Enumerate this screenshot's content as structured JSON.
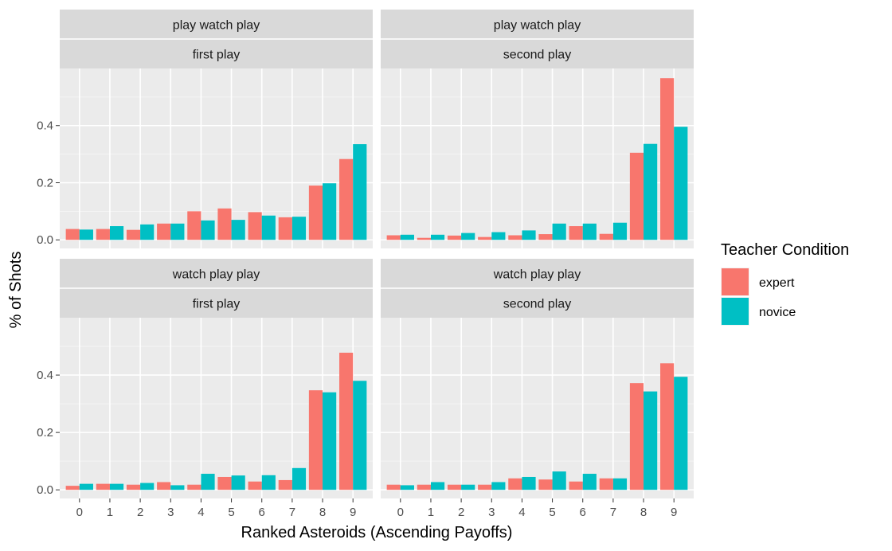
{
  "chart_data": {
    "type": "bar",
    "xlabel": "Ranked Asteroids (Ascending Payoffs)",
    "ylabel": "% of Shots",
    "categories": [
      "0",
      "1",
      "2",
      "3",
      "4",
      "5",
      "6",
      "7",
      "8",
      "9"
    ],
    "y_ticks": [
      "0.0",
      "0.2",
      "0.4"
    ],
    "ylim": [
      -0.03,
      0.6
    ],
    "grid": true,
    "legend": {
      "title": "Teacher Condition",
      "position": "right",
      "entries": [
        {
          "label": "expert",
          "color": "#F8766D"
        },
        {
          "label": "novice",
          "color": "#00BFC4"
        }
      ]
    },
    "panels": [
      {
        "strip_top": "play watch play",
        "strip_bottom": "first play",
        "series": [
          {
            "name": "expert",
            "color": "#F8766D",
            "values": [
              0.038,
              0.038,
              0.035,
              0.057,
              0.1,
              0.11,
              0.097,
              0.079,
              0.19,
              0.283
            ]
          },
          {
            "name": "novice",
            "color": "#00BFC4",
            "values": [
              0.036,
              0.048,
              0.054,
              0.057,
              0.068,
              0.07,
              0.085,
              0.081,
              0.198,
              0.335
            ]
          }
        ]
      },
      {
        "strip_top": "play watch play",
        "strip_bottom": "second play",
        "series": [
          {
            "name": "expert",
            "color": "#F8766D",
            "values": [
              0.016,
              0.007,
              0.015,
              0.01,
              0.016,
              0.02,
              0.048,
              0.021,
              0.305,
              0.566
            ]
          },
          {
            "name": "novice",
            "color": "#00BFC4",
            "values": [
              0.018,
              0.018,
              0.024,
              0.027,
              0.033,
              0.057,
              0.057,
              0.06,
              0.336,
              0.396
            ]
          }
        ]
      },
      {
        "strip_top": "watch play play",
        "strip_bottom": "first play",
        "series": [
          {
            "name": "expert",
            "color": "#F8766D",
            "values": [
              0.014,
              0.021,
              0.018,
              0.027,
              0.018,
              0.045,
              0.029,
              0.034,
              0.347,
              0.478
            ]
          },
          {
            "name": "novice",
            "color": "#00BFC4",
            "values": [
              0.021,
              0.021,
              0.024,
              0.016,
              0.056,
              0.05,
              0.051,
              0.076,
              0.34,
              0.38
            ]
          }
        ]
      },
      {
        "strip_top": "watch play play",
        "strip_bottom": "second play",
        "series": [
          {
            "name": "expert",
            "color": "#F8766D",
            "values": [
              0.018,
              0.018,
              0.018,
              0.018,
              0.04,
              0.036,
              0.029,
              0.04,
              0.372,
              0.441
            ]
          },
          {
            "name": "novice",
            "color": "#00BFC4",
            "values": [
              0.016,
              0.027,
              0.018,
              0.027,
              0.045,
              0.064,
              0.056,
              0.04,
              0.343,
              0.394
            ]
          }
        ]
      }
    ]
  }
}
